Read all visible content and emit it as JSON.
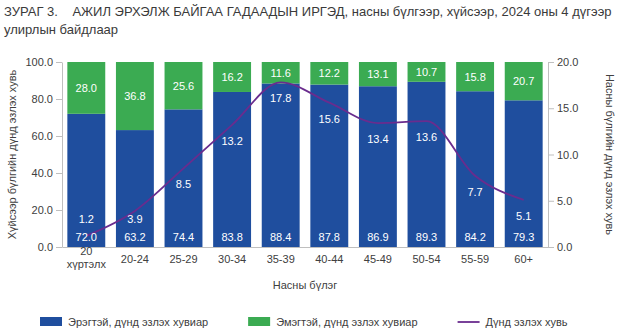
{
  "chart_data": {
    "type": "bar",
    "stacked": true,
    "title": "ЗУРАГ 3.    АЖИЛ ЭРХЭЛЖ БАЙГАА ГАДААДЫН ИРГЭД, насны бүлгээр, хүйсээр, 2024 оны 4 дүгээр улирлын байдлаар",
    "x_label": "Насны бүлэг",
    "y_label": "Хүйсээр бүлгийн дүнд эзлэх хувь",
    "y2_label": "Насны бүлгийн дүнд эзлэх хувь",
    "categories": [
      "20 хүртэлх",
      "20-24",
      "25-29",
      "30-34",
      "35-39",
      "40-44",
      "45-49",
      "50-54",
      "55-59",
      "60+"
    ],
    "series": [
      {
        "name": "Эрэгтэй, дүнд эзлэх хувиар",
        "color": "#1f4e9e",
        "values": [
          72.0,
          63.2,
          74.4,
          83.8,
          88.4,
          87.8,
          86.9,
          89.3,
          84.2,
          79.3
        ],
        "value_labels": [
          "72.0",
          "63.2",
          "74.4",
          "83.8",
          "88.4",
          "87.8",
          "86.9",
          "89.3",
          "84.2",
          "79.3"
        ]
      },
      {
        "name": "Эмэгтэй, дүнд эзлэх хувиар",
        "color": "#3bab52",
        "values": [
          28.0,
          36.8,
          25.6,
          16.2,
          11.6,
          12.2,
          13.1,
          10.7,
          15.8,
          20.7
        ],
        "value_labels": [
          "28.0",
          "36.8",
          "25.6",
          "16.2",
          "11.6",
          "12.2",
          "13.1",
          "10.7",
          "15.8",
          "20.7"
        ]
      },
      {
        "name": "Дүнд эзлэх хувь",
        "type": "line",
        "axis": "y2",
        "color": "#6a2c8e",
        "marker": "none",
        "line_style": "solid",
        "values": [
          1.2,
          3.9,
          8.5,
          13.2,
          17.8,
          15.6,
          13.4,
          13.6,
          7.7,
          5.1
        ]
      }
    ],
    "ylim": [
      0,
      100
    ],
    "yticks": [
      {
        "value": 0,
        "label": "0.0"
      },
      {
        "value": 20,
        "label": "20.0"
      },
      {
        "value": 40,
        "label": "40.0"
      },
      {
        "value": 60,
        "label": "60.0"
      },
      {
        "value": 80,
        "label": "80.0"
      },
      {
        "value": 100,
        "label": "100.0"
      }
    ],
    "y2lim": [
      0,
      20
    ],
    "y2ticks": [
      {
        "value": 0,
        "label": "0.0"
      },
      {
        "value": 5,
        "label": "5.0"
      },
      {
        "value": 10,
        "label": "10.0"
      },
      {
        "value": 15,
        "label": "15.0"
      },
      {
        "value": 20,
        "label": "20.0"
      }
    ],
    "data_labels": true,
    "legend": "bottom",
    "grid": false
  }
}
